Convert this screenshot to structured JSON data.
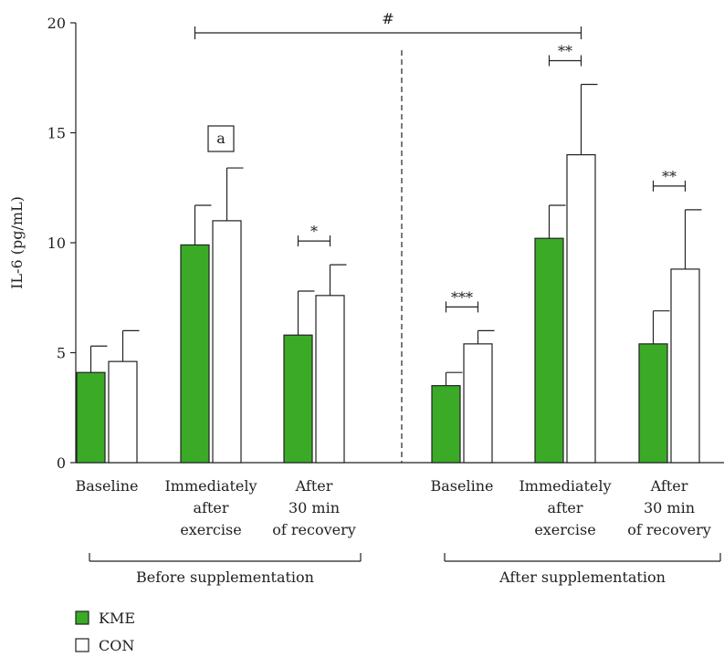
{
  "chart_data": {
    "type": "bar",
    "ylabel": "IL-6 (pg/mL)",
    "ylim": [
      0,
      20
    ],
    "yticks": [
      "0",
      "5",
      "10",
      "15",
      "20"
    ],
    "grid": false,
    "legend_position": "bottom-left",
    "colors": {
      "KME": "#3aaa27",
      "CON": "#ffffff",
      "axis": "#222222"
    },
    "groups": [
      {
        "label": "Before supplementation",
        "categories": [
          [
            "Baseline"
          ],
          [
            "Immediately",
            "after",
            "exercise"
          ],
          [
            "After",
            "30 min",
            "of recovery"
          ]
        ]
      },
      {
        "label": "After supplementation",
        "categories": [
          [
            "Baseline"
          ],
          [
            "Immediately",
            "after",
            "exercise"
          ],
          [
            "After",
            "30 min",
            "of recovery"
          ]
        ]
      }
    ],
    "series": [
      {
        "name": "KME",
        "values": [
          4.1,
          9.9,
          5.8,
          3.5,
          10.2,
          5.4
        ],
        "errors": [
          1.2,
          1.8,
          2.0,
          0.6,
          1.5,
          1.5
        ]
      },
      {
        "name": "CON",
        "values": [
          4.6,
          11.0,
          7.6,
          5.4,
          14.0,
          8.8
        ],
        "errors": [
          1.4,
          2.4,
          1.4,
          0.6,
          3.2,
          2.7
        ]
      }
    ],
    "annotations": [
      {
        "type": "box-label",
        "text": "a",
        "category": 1
      },
      {
        "type": "bracket",
        "text": "*",
        "category": 2
      },
      {
        "type": "bracket",
        "text": "***",
        "category": 3
      },
      {
        "type": "bracket",
        "text": "**",
        "category": 4
      },
      {
        "type": "bracket",
        "text": "**",
        "category": 5
      },
      {
        "type": "wide-bracket",
        "text": "#",
        "from_category": 1,
        "to_category": 4
      }
    ]
  }
}
